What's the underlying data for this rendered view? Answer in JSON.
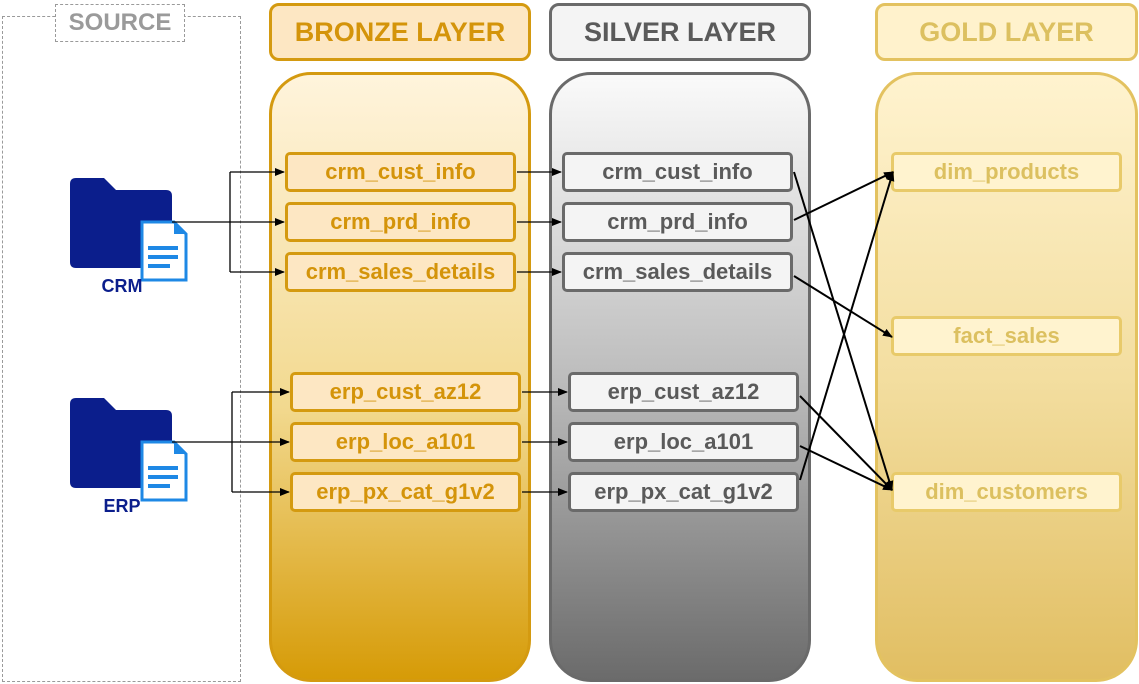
{
  "source": {
    "title": "SOURCE",
    "systems": [
      {
        "label": "CRM"
      },
      {
        "label": "ERP"
      }
    ]
  },
  "layers": {
    "bronze": {
      "title": "BRONZE LAYER",
      "tables": [
        "crm_cust_info",
        "crm_prd_info",
        "crm_sales_details",
        "erp_cust_az12",
        "erp_loc_a101",
        "erp_px_cat_g1v2"
      ]
    },
    "silver": {
      "title": "SILVER LAYER",
      "tables": [
        "crm_cust_info",
        "crm_prd_info",
        "crm_sales_details",
        "erp_cust_az12",
        "erp_loc_a101",
        "erp_px_cat_g1v2"
      ]
    },
    "gold": {
      "title": "GOLD LAYER",
      "tables": [
        "dim_products",
        "fact_sales",
        "dim_customers"
      ]
    }
  },
  "flows": {
    "silver_to_gold": [
      {
        "from": "crm_cust_info",
        "to": "dim_customers"
      },
      {
        "from": "crm_prd_info",
        "to": "dim_products"
      },
      {
        "from": "crm_sales_details",
        "to": "fact_sales"
      },
      {
        "from": "erp_cust_az12",
        "to": "dim_customers"
      },
      {
        "from": "erp_loc_a101",
        "to": "dim_customers"
      },
      {
        "from": "erp_px_cat_g1v2",
        "to": "dim_products"
      }
    ]
  },
  "colors": {
    "bronze": "#d49a10",
    "silver": "#6a6a6a",
    "gold": "#e3c260",
    "source_icon": "#0b1e8c",
    "document_icon": "#1e88e5"
  }
}
